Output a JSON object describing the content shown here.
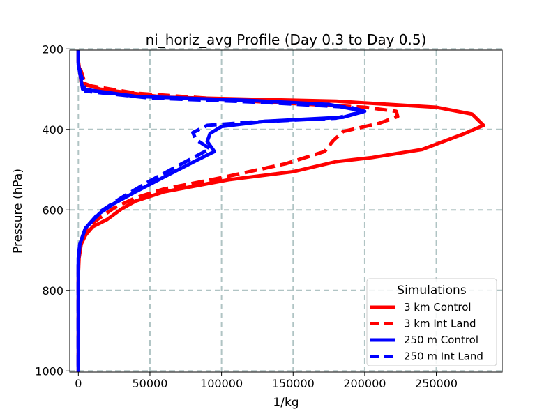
{
  "chart_data": {
    "type": "line",
    "title": "ni_horiz_avg Profile (Day 0.3 to Day 0.5)",
    "xlabel": "1/kg",
    "ylabel": "Pressure (hPa)",
    "xlim": [
      -6000,
      296000
    ],
    "ylim": [
      1003,
      203
    ],
    "y_inverted": true,
    "grid": true,
    "x_ticks": [
      0,
      50000,
      100000,
      150000,
      200000,
      250000
    ],
    "x_tick_labels": [
      "0",
      "50000",
      "100000",
      "150000",
      "200000",
      "250000"
    ],
    "y_ticks": [
      200,
      400,
      600,
      800,
      1000
    ],
    "y_tick_labels": [
      "200",
      "400",
      "600",
      "800",
      "1000"
    ],
    "legend": {
      "title": "Simulations",
      "position": "lower-right"
    },
    "series": [
      {
        "name": "3 km Control",
        "color": "#ff0000",
        "dash": "solid",
        "points": [
          [
            0,
            203
          ],
          [
            0,
            230
          ],
          [
            2000,
            283
          ],
          [
            15000,
            300
          ],
          [
            60000,
            320
          ],
          [
            180000,
            330
          ],
          [
            250000,
            345
          ],
          [
            275000,
            362
          ],
          [
            283000,
            390
          ],
          [
            270000,
            410
          ],
          [
            240000,
            450
          ],
          [
            205000,
            470
          ],
          [
            180000,
            480
          ],
          [
            150000,
            505
          ],
          [
            105000,
            525
          ],
          [
            60000,
            555
          ],
          [
            40000,
            578
          ],
          [
            30000,
            598
          ],
          [
            20000,
            624
          ],
          [
            10000,
            642
          ],
          [
            5000,
            663
          ],
          [
            2000,
            685
          ],
          [
            500,
            720
          ],
          [
            0,
            760
          ],
          [
            0,
            1003
          ]
        ]
      },
      {
        "name": "3 km Int Land",
        "color": "#ff0000",
        "dash": "dashed",
        "points": [
          [
            0,
            203
          ],
          [
            0,
            233
          ],
          [
            5000,
            290
          ],
          [
            40000,
            310
          ],
          [
            120000,
            330
          ],
          [
            200000,
            345
          ],
          [
            222000,
            355
          ],
          [
            223000,
            368
          ],
          [
            210000,
            385
          ],
          [
            185000,
            405
          ],
          [
            178000,
            428
          ],
          [
            172000,
            455
          ],
          [
            145000,
            485
          ],
          [
            100000,
            520
          ],
          [
            60000,
            548
          ],
          [
            40000,
            570
          ],
          [
            25000,
            595
          ],
          [
            12000,
            627
          ],
          [
            5000,
            653
          ],
          [
            1000,
            690
          ],
          [
            0,
            740
          ],
          [
            0,
            1003
          ]
        ]
      },
      {
        "name": "250 m Control",
        "color": "#0000ff",
        "dash": "solid",
        "points": [
          [
            0,
            203
          ],
          [
            0,
            238
          ],
          [
            3000,
            300
          ],
          [
            40000,
            318
          ],
          [
            120000,
            328
          ],
          [
            175000,
            338
          ],
          [
            200000,
            355
          ],
          [
            185000,
            370
          ],
          [
            130000,
            380
          ],
          [
            100000,
            393
          ],
          [
            92000,
            410
          ],
          [
            90000,
            430
          ],
          [
            95000,
            455
          ],
          [
            82000,
            478
          ],
          [
            60000,
            518
          ],
          [
            40000,
            555
          ],
          [
            25000,
            584
          ],
          [
            15000,
            608
          ],
          [
            5000,
            645
          ],
          [
            1000,
            685
          ],
          [
            0,
            720
          ],
          [
            0,
            1003
          ]
        ]
      },
      {
        "name": "250 m Int Land",
        "color": "#0000ff",
        "dash": "dashed",
        "points": [
          [
            0,
            203
          ],
          [
            0,
            240
          ],
          [
            5000,
            305
          ],
          [
            50000,
            322
          ],
          [
            130000,
            333
          ],
          [
            190000,
            345
          ],
          [
            200000,
            355
          ],
          [
            180000,
            372
          ],
          [
            120000,
            382
          ],
          [
            90000,
            390
          ],
          [
            80000,
            408
          ],
          [
            82000,
            425
          ],
          [
            92000,
            448
          ],
          [
            75000,
            480
          ],
          [
            50000,
            528
          ],
          [
            30000,
            570
          ],
          [
            15000,
            605
          ],
          [
            5000,
            645
          ],
          [
            1000,
            685
          ],
          [
            0,
            730
          ],
          [
            0,
            1003
          ]
        ]
      }
    ]
  }
}
